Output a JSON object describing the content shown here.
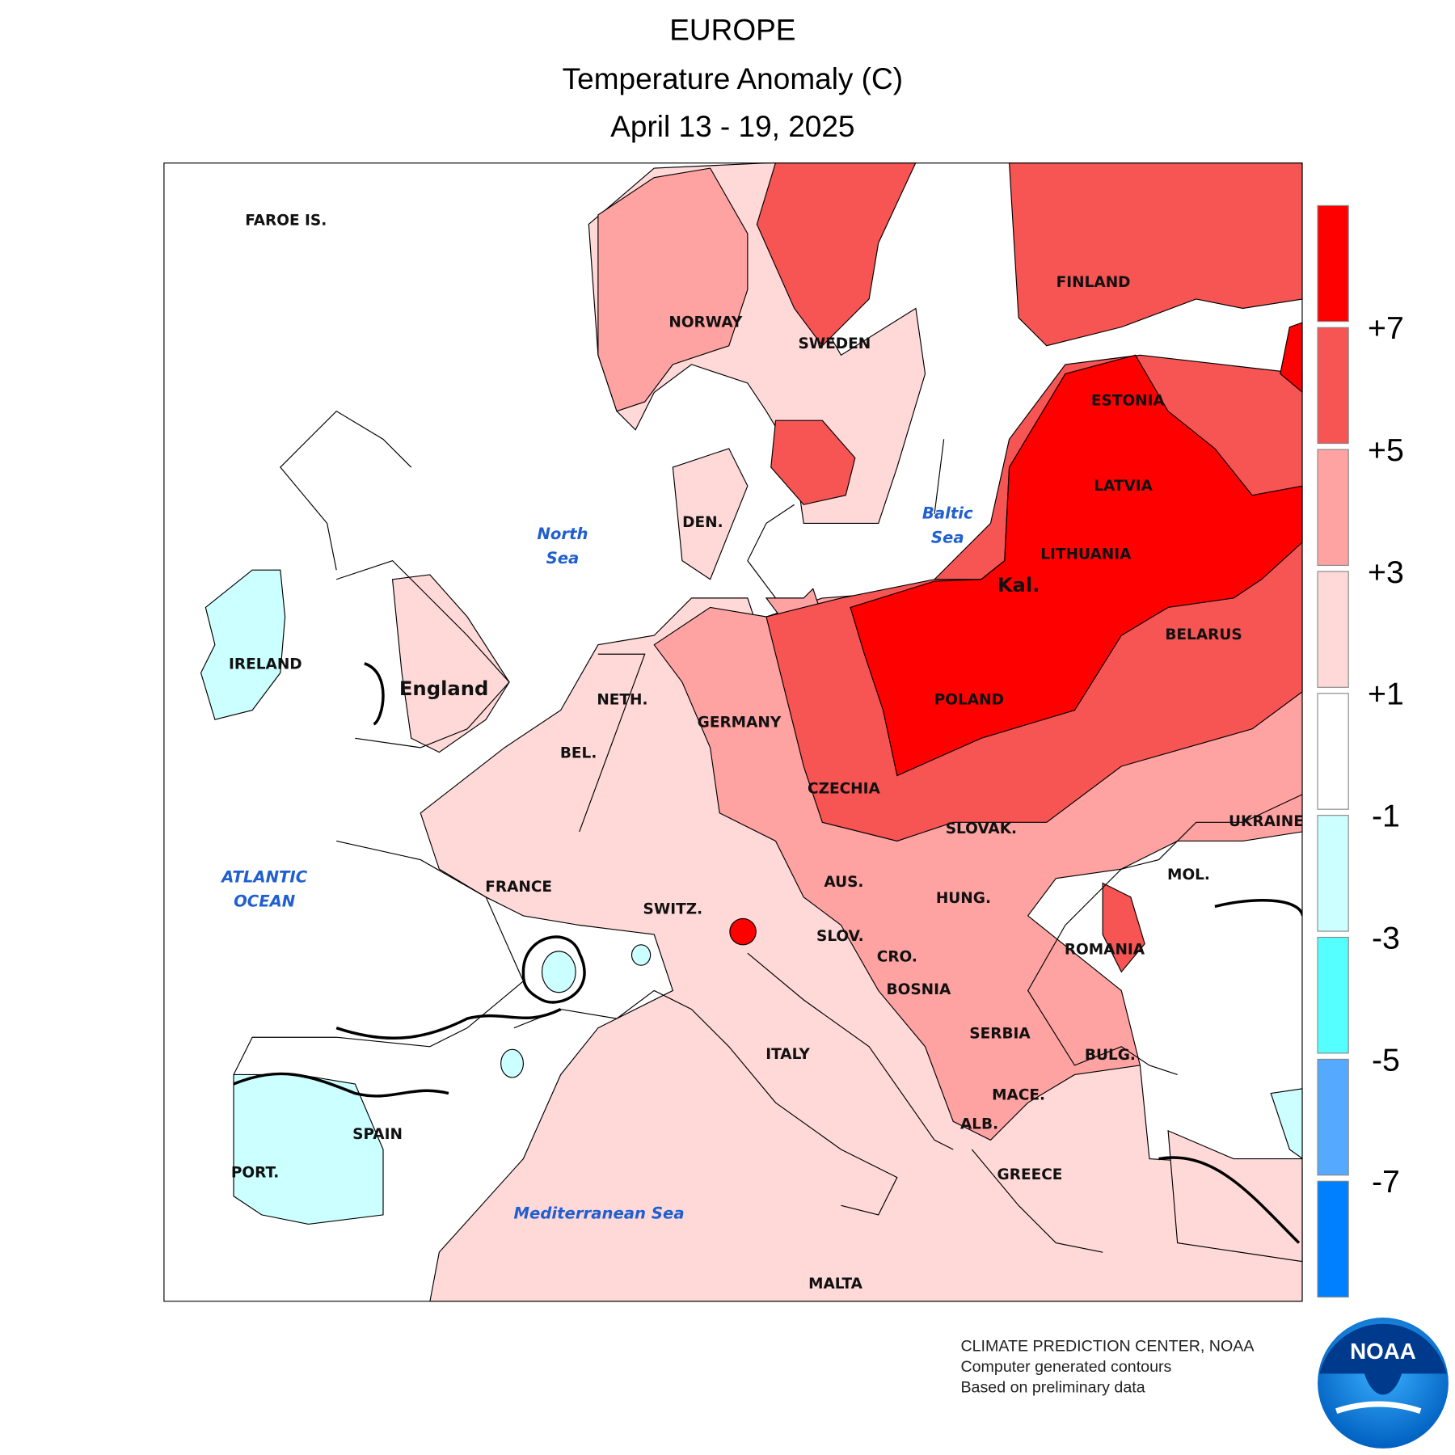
{
  "header": {
    "title": "EUROPE",
    "subtitle": "Temperature Anomaly (C)",
    "dates": "April 13 - 19, 2025"
  },
  "map": {
    "countries": [
      "FAROE IS.",
      "NORWAY",
      "SWEDEN",
      "FINLAND",
      "ESTONIA",
      "LATVIA",
      "LITHUANIA",
      "Kal.",
      "BELARUS",
      "POLAND",
      "DEN.",
      "IRELAND",
      "England",
      "NETH.",
      "GERMANY",
      "BEL.",
      "CZECHIA",
      "SLOVAK.",
      "UKRAINE",
      "FRANCE",
      "AUS.",
      "SWITZ.",
      "HUNG.",
      "MOL.",
      "SLOV.",
      "CRO.",
      "ROMANIA",
      "BOSNIA",
      "SERBIA",
      "ITALY",
      "BULG.",
      "MACE.",
      "ALB.",
      "SPAIN",
      "PORT.",
      "GREECE",
      "MALTA"
    ],
    "waters": [
      [
        "North",
        "Sea"
      ],
      [
        "Baltic",
        "Sea"
      ],
      [
        "ATLANTIC",
        "OCEAN"
      ],
      [
        "Mediterranean Sea"
      ]
    ]
  },
  "legend": {
    "colors": [
      "#ff0000",
      "#f75454",
      "#ffa2a2",
      "#ffd8d8",
      "#ffffff",
      "#ccffff",
      "#55ffff",
      "#55aaff",
      "#0080ff"
    ],
    "ticks": [
      "+7",
      "+5",
      "+3",
      "+1",
      "-1",
      "-3",
      "-5",
      "-7"
    ]
  },
  "footer": {
    "lines": [
      "CLIMATE PREDICTION CENTER, NOAA",
      "Computer generated contours",
      "Based on preliminary data"
    ],
    "logo": "NOAA"
  }
}
